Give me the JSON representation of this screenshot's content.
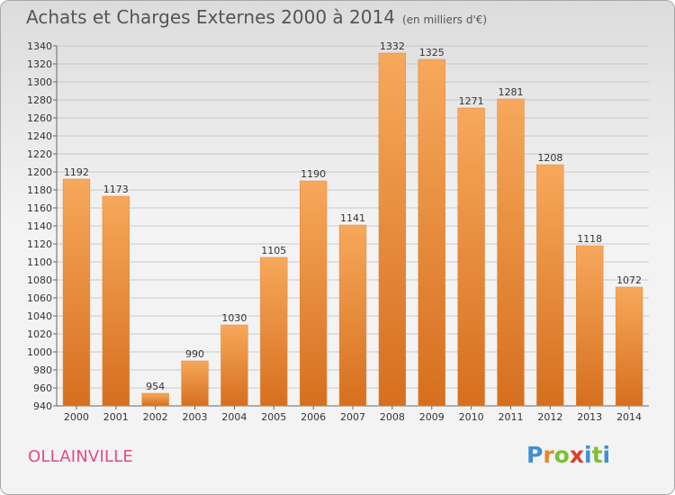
{
  "title": "Achats et Charges Externes 2000 à 2014",
  "subtitle": "(en milliers d'€)",
  "commune": "OLLAINVILLE",
  "logo": {
    "text": "Proxiti",
    "letters": [
      "P",
      "r",
      "o",
      "x",
      "i",
      "t",
      "i"
    ],
    "colors": [
      "#3f8fd6",
      "#e8852b",
      "#7cbf3a",
      "#d9412f",
      "#3f8fd6",
      "#7cbf3a",
      "#3f8fd6"
    ]
  },
  "colors": {
    "bar_light": "#f7a85b",
    "bar_dark": "#d66f1e",
    "title": "#555555",
    "commune": "#e04b8b"
  },
  "chart_data": {
    "type": "bar",
    "categories": [
      "2000",
      "2001",
      "2002",
      "2003",
      "2004",
      "2005",
      "2006",
      "2007",
      "2008",
      "2009",
      "2010",
      "2011",
      "2012",
      "2013",
      "2014"
    ],
    "values": [
      1192,
      1173,
      954,
      990,
      1030,
      1105,
      1190,
      1141,
      1332,
      1325,
      1271,
      1281,
      1208,
      1118,
      1072
    ],
    "ylim": [
      940,
      1340
    ],
    "yticks": [
      940,
      960,
      980,
      1000,
      1020,
      1040,
      1060,
      1080,
      1100,
      1120,
      1140,
      1160,
      1180,
      1200,
      1220,
      1240,
      1260,
      1280,
      1300,
      1320,
      1340
    ],
    "grid": true,
    "xlabel": "",
    "ylabel": ""
  }
}
